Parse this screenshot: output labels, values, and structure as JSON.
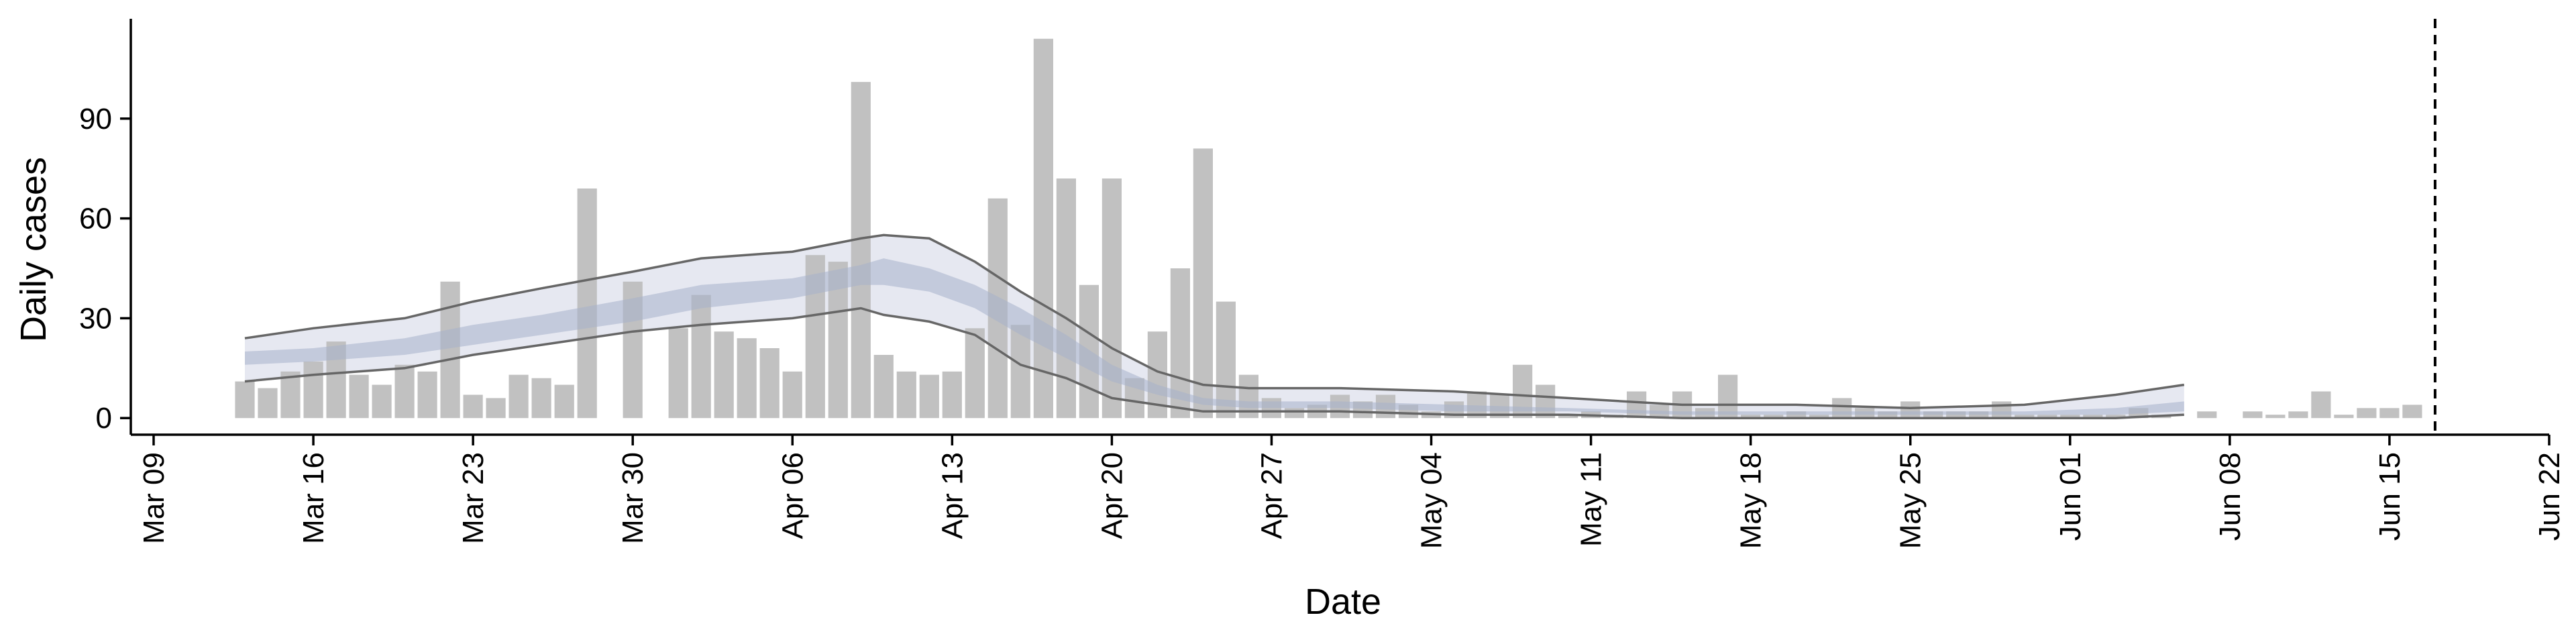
{
  "chart_data": {
    "type": "bar",
    "xlabel": "Date",
    "ylabel": "Daily cases",
    "xlim": [
      "2020-03-08",
      "2020-06-22"
    ],
    "ylim": [
      -5,
      120
    ],
    "y_ticks": [
      0,
      30,
      60,
      90
    ],
    "x_ticks": [
      {
        "date": "2020-03-09",
        "label": "Mar 09"
      },
      {
        "date": "2020-03-16",
        "label": "Mar 16"
      },
      {
        "date": "2020-03-23",
        "label": "Mar 23"
      },
      {
        "date": "2020-03-30",
        "label": "Mar 30"
      },
      {
        "date": "2020-04-06",
        "label": "Apr 06"
      },
      {
        "date": "2020-04-13",
        "label": "Apr 13"
      },
      {
        "date": "2020-04-20",
        "label": "Apr 20"
      },
      {
        "date": "2020-04-27",
        "label": "Apr 27"
      },
      {
        "date": "2020-05-04",
        "label": "May 04"
      },
      {
        "date": "2020-05-11",
        "label": "May 11"
      },
      {
        "date": "2020-05-18",
        "label": "May 18"
      },
      {
        "date": "2020-05-25",
        "label": "May 25"
      },
      {
        "date": "2020-06-01",
        "label": "Jun 01"
      },
      {
        "date": "2020-06-08",
        "label": "Jun 08"
      },
      {
        "date": "2020-06-15",
        "label": "Jun 15"
      },
      {
        "date": "2020-06-22",
        "label": "Jun 22"
      }
    ],
    "vline_date": "2020-06-17",
    "grid": false,
    "legend": "none",
    "bar_color": "#bebebe",
    "band_outer_color": "#e6e8f1",
    "band_inner_color": "#a5b0cb",
    "bound_line_color": "#666666",
    "bars": [
      {
        "date": "2020-03-13",
        "value": 11
      },
      {
        "date": "2020-03-14",
        "value": 9
      },
      {
        "date": "2020-03-15",
        "value": 14
      },
      {
        "date": "2020-03-16",
        "value": 17
      },
      {
        "date": "2020-03-17",
        "value": 23
      },
      {
        "date": "2020-03-18",
        "value": 13
      },
      {
        "date": "2020-03-19",
        "value": 10
      },
      {
        "date": "2020-03-20",
        "value": 16
      },
      {
        "date": "2020-03-21",
        "value": 14
      },
      {
        "date": "2020-03-22",
        "value": 41
      },
      {
        "date": "2020-03-23",
        "value": 7
      },
      {
        "date": "2020-03-24",
        "value": 6
      },
      {
        "date": "2020-03-25",
        "value": 13
      },
      {
        "date": "2020-03-26",
        "value": 12
      },
      {
        "date": "2020-03-27",
        "value": 10
      },
      {
        "date": "2020-03-28",
        "value": 69
      },
      {
        "date": "2020-03-29",
        "value": 0
      },
      {
        "date": "2020-03-30",
        "value": 41
      },
      {
        "date": "2020-03-31",
        "value": 0
      },
      {
        "date": "2020-04-01",
        "value": 27
      },
      {
        "date": "2020-04-02",
        "value": 37
      },
      {
        "date": "2020-04-03",
        "value": 26
      },
      {
        "date": "2020-04-04",
        "value": 24
      },
      {
        "date": "2020-04-05",
        "value": 21
      },
      {
        "date": "2020-04-06",
        "value": 14
      },
      {
        "date": "2020-04-07",
        "value": 49
      },
      {
        "date": "2020-04-08",
        "value": 47
      },
      {
        "date": "2020-04-09",
        "value": 101
      },
      {
        "date": "2020-04-10",
        "value": 19
      },
      {
        "date": "2020-04-11",
        "value": 14
      },
      {
        "date": "2020-04-12",
        "value": 13
      },
      {
        "date": "2020-04-13",
        "value": 14
      },
      {
        "date": "2020-04-14",
        "value": 27
      },
      {
        "date": "2020-04-15",
        "value": 66
      },
      {
        "date": "2020-04-16",
        "value": 28
      },
      {
        "date": "2020-04-17",
        "value": 114
      },
      {
        "date": "2020-04-18",
        "value": 72
      },
      {
        "date": "2020-04-19",
        "value": 40
      },
      {
        "date": "2020-04-20",
        "value": 72
      },
      {
        "date": "2020-04-21",
        "value": 12
      },
      {
        "date": "2020-04-22",
        "value": 26
      },
      {
        "date": "2020-04-23",
        "value": 45
      },
      {
        "date": "2020-04-24",
        "value": 81
      },
      {
        "date": "2020-04-25",
        "value": 35
      },
      {
        "date": "2020-04-26",
        "value": 13
      },
      {
        "date": "2020-04-27",
        "value": 6
      },
      {
        "date": "2020-04-28",
        "value": 3
      },
      {
        "date": "2020-04-29",
        "value": 4
      },
      {
        "date": "2020-04-30",
        "value": 7
      },
      {
        "date": "2020-05-01",
        "value": 5
      },
      {
        "date": "2020-05-02",
        "value": 7
      },
      {
        "date": "2020-05-03",
        "value": 4
      },
      {
        "date": "2020-05-04",
        "value": 2
      },
      {
        "date": "2020-05-05",
        "value": 5
      },
      {
        "date": "2020-05-06",
        "value": 8
      },
      {
        "date": "2020-05-07",
        "value": 7
      },
      {
        "date": "2020-05-08",
        "value": 16
      },
      {
        "date": "2020-05-09",
        "value": 10
      },
      {
        "date": "2020-05-10",
        "value": 1
      },
      {
        "date": "2020-05-11",
        "value": 2
      },
      {
        "date": "2020-05-12",
        "value": 1
      },
      {
        "date": "2020-05-13",
        "value": 8
      },
      {
        "date": "2020-05-14",
        "value": 4
      },
      {
        "date": "2020-05-15",
        "value": 8
      },
      {
        "date": "2020-05-16",
        "value": 3
      },
      {
        "date": "2020-05-17",
        "value": 13
      },
      {
        "date": "2020-05-18",
        "value": 1
      },
      {
        "date": "2020-05-19",
        "value": 1
      },
      {
        "date": "2020-05-20",
        "value": 2
      },
      {
        "date": "2020-05-21",
        "value": 1
      },
      {
        "date": "2020-05-22",
        "value": 6
      },
      {
        "date": "2020-05-23",
        "value": 3
      },
      {
        "date": "2020-05-24",
        "value": 2
      },
      {
        "date": "2020-05-25",
        "value": 5
      },
      {
        "date": "2020-05-26",
        "value": 2
      },
      {
        "date": "2020-05-27",
        "value": 2
      },
      {
        "date": "2020-05-28",
        "value": 2
      },
      {
        "date": "2020-05-29",
        "value": 5
      },
      {
        "date": "2020-05-30",
        "value": 1
      },
      {
        "date": "2020-05-31",
        "value": 1
      },
      {
        "date": "2020-06-01",
        "value": 1
      },
      {
        "date": "2020-06-02",
        "value": 1
      },
      {
        "date": "2020-06-03",
        "value": 1
      },
      {
        "date": "2020-06-04",
        "value": 3
      },
      {
        "date": "2020-06-05",
        "value": 1
      },
      {
        "date": "2020-06-06",
        "value": 0
      },
      {
        "date": "2020-06-07",
        "value": 2
      },
      {
        "date": "2020-06-08",
        "value": 0
      },
      {
        "date": "2020-06-09",
        "value": 2
      },
      {
        "date": "2020-06-10",
        "value": 1
      },
      {
        "date": "2020-06-11",
        "value": 2
      },
      {
        "date": "2020-06-12",
        "value": 8
      },
      {
        "date": "2020-06-13",
        "value": 1
      },
      {
        "date": "2020-06-14",
        "value": 3
      },
      {
        "date": "2020-06-15",
        "value": 3
      },
      {
        "date": "2020-06-16",
        "value": 4
      }
    ],
    "band": {
      "dates": [
        "2020-03-13",
        "2020-03-16",
        "2020-03-20",
        "2020-03-23",
        "2020-03-26",
        "2020-03-30",
        "2020-04-02",
        "2020-04-06",
        "2020-04-09",
        "2020-04-10",
        "2020-04-12",
        "2020-04-14",
        "2020-04-16",
        "2020-04-18",
        "2020-04-20",
        "2020-04-22",
        "2020-04-24",
        "2020-04-26",
        "2020-04-30",
        "2020-05-05",
        "2020-05-10",
        "2020-05-15",
        "2020-05-20",
        "2020-05-25",
        "2020-05-30",
        "2020-06-03",
        "2020-06-06"
      ],
      "outer_upper": [
        24,
        27,
        30,
        35,
        39,
        44,
        48,
        50,
        54,
        55,
        54,
        47,
        38,
        30,
        21,
        14,
        10,
        9,
        9,
        8,
        6,
        4,
        4,
        3,
        4,
        7,
        10
      ],
      "outer_lower": [
        11,
        13,
        15,
        19,
        22,
        26,
        28,
        30,
        33,
        31,
        29,
        25,
        16,
        12,
        6,
        4,
        2,
        2,
        2,
        1,
        1,
        0,
        0,
        0,
        0,
        0,
        1
      ],
      "inner_upper": [
        20,
        21,
        24,
        28,
        31,
        36,
        40,
        42,
        46,
        48,
        45,
        40,
        33,
        25,
        16,
        10,
        6,
        5,
        5,
        4,
        3,
        2,
        2,
        2,
        2,
        3,
        5
      ],
      "inner_lower": [
        16,
        17,
        19,
        22,
        25,
        29,
        33,
        36,
        40,
        40,
        38,
        33,
        25,
        18,
        11,
        7,
        4,
        3,
        3,
        2,
        2,
        1,
        1,
        1,
        1,
        1,
        2
      ]
    }
  }
}
